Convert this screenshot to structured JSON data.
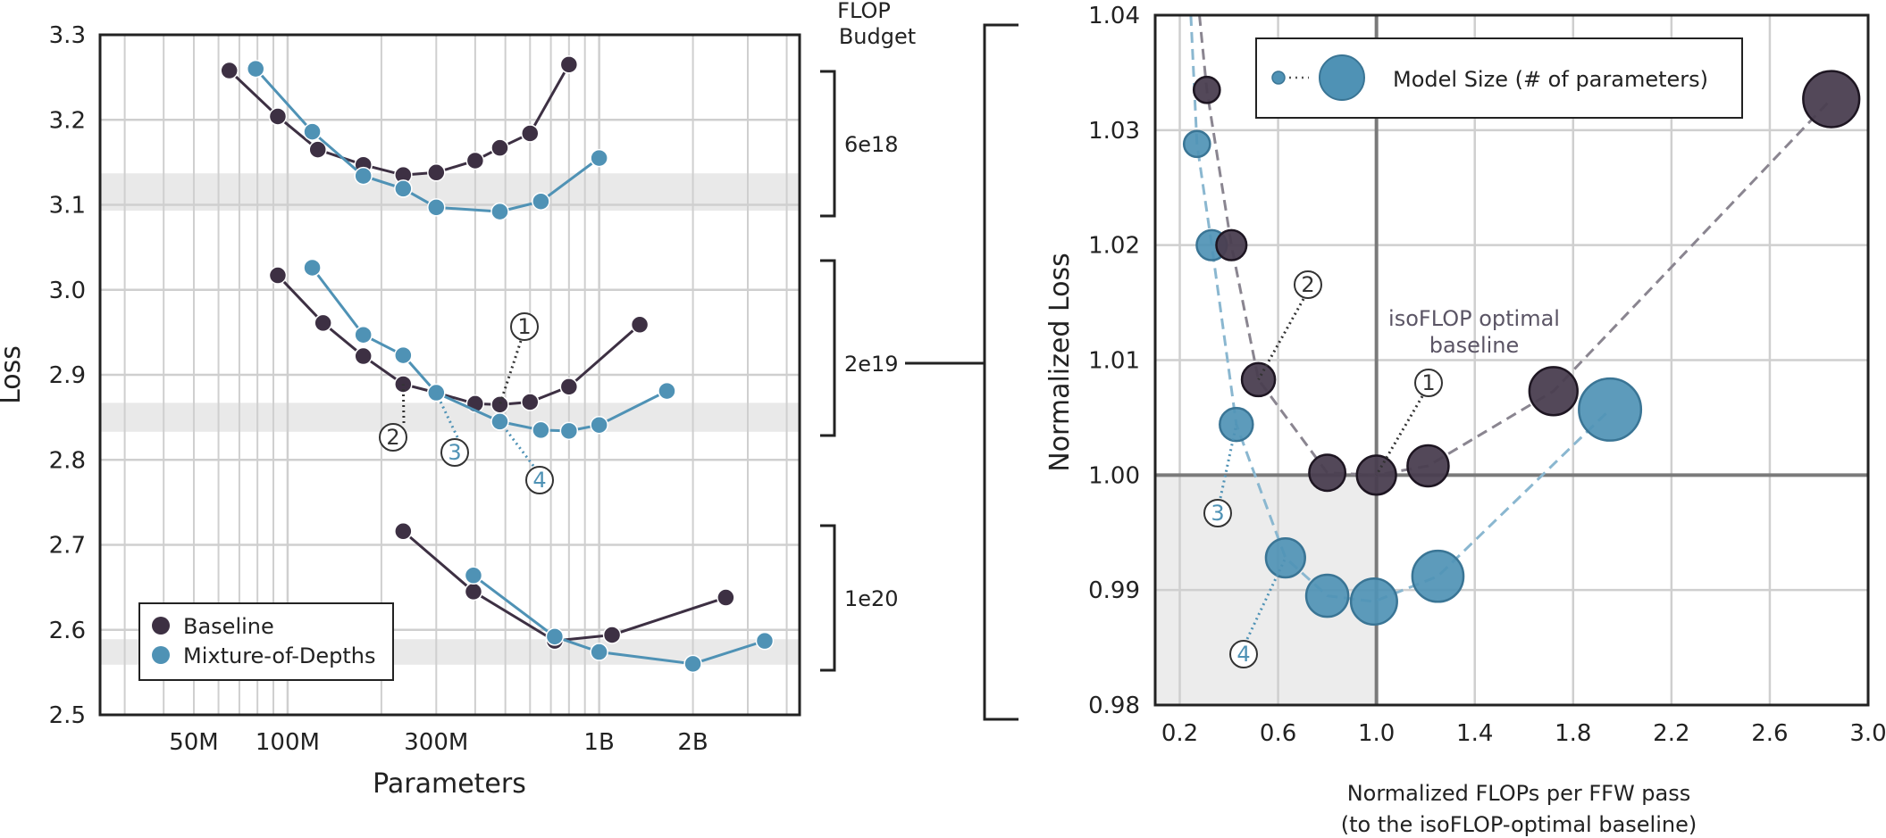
{
  "colors": {
    "baseline": "#3d3043",
    "mod": "#4f92b5",
    "mod_light": "#8ab7d0",
    "grid": "#cfcfcf",
    "band": "#e9e9e9"
  },
  "left": {
    "ylabel": "Loss",
    "xlabel": "Parameters",
    "flop_header": [
      "FLOP",
      "Budget"
    ],
    "budgets": [
      "6e18",
      "2e19",
      "1e20"
    ],
    "legend": [
      "Baseline",
      "Mixture-of-Depths"
    ],
    "yticks": [
      "2.5",
      "2.6",
      "2.7",
      "2.8",
      "2.9",
      "3.0",
      "3.1",
      "3.2",
      "3.3"
    ],
    "xticks": [
      "50M",
      "100M",
      "300M",
      "1B",
      "2B"
    ],
    "annotations": [
      "1",
      "2",
      "3",
      "4"
    ]
  },
  "right": {
    "ylabel": "Normalized Loss",
    "xlabel_line1": "Normalized FLOPs per FFW pass",
    "xlabel_line2": "(to the isoFLOP-optimal baseline)",
    "legend_label": "Model Size (# of parameters)",
    "iso_label_line1": "isoFLOP optimal",
    "iso_label_line2": "baseline",
    "yticks": [
      "0.98",
      "0.99",
      "1.00",
      "1.01",
      "1.02",
      "1.03",
      "1.04"
    ],
    "xticks": [
      "0.2",
      "0.6",
      "1.0",
      "1.4",
      "1.8",
      "2.2",
      "2.6",
      "3.0"
    ],
    "annotations": [
      "1",
      "2",
      "3",
      "4"
    ]
  },
  "chart_data": [
    {
      "type": "line",
      "xlabel": "Parameters",
      "ylabel": "Loss",
      "xscale": "log",
      "xlim": [
        25000000.0,
        4400000000.0
      ],
      "ylim": [
        2.5,
        3.3
      ],
      "legend": "lower-left",
      "grid": true,
      "series": [
        {
          "name": "Baseline",
          "budget": "6e18",
          "x": [
            65000000.0,
            93000000.0,
            125000000.0,
            175000000.0,
            235000000.0,
            300000000.0,
            400000000.0,
            480000000.0,
            600000000.0,
            800000000.0
          ],
          "y": [
            3.258,
            3.204,
            3.165,
            3.147,
            3.135,
            3.138,
            3.152,
            3.167,
            3.184,
            3.265
          ]
        },
        {
          "name": "Mixture-of-Depths",
          "budget": "6e18",
          "x": [
            79000000.0,
            120000000.0,
            175000000.0,
            235000000.0,
            300000000.0,
            480000000.0,
            650000000.0,
            1000000000.0
          ],
          "y": [
            3.26,
            3.186,
            3.134,
            3.119,
            3.097,
            3.092,
            3.104,
            3.155
          ]
        },
        {
          "name": "Baseline",
          "budget": "2e19",
          "x": [
            93000000.0,
            130000000.0,
            175000000.0,
            235000000.0,
            300000000.0,
            400000000.0,
            480000000.0,
            600000000.0,
            800000000.0,
            1350000000.0
          ],
          "y": [
            3.017,
            2.961,
            2.922,
            2.889,
            2.879,
            2.866,
            2.865,
            2.868,
            2.886,
            2.959
          ]
        },
        {
          "name": "Mixture-of-Depths",
          "budget": "2e19",
          "x": [
            120000000.0,
            175000000.0,
            235000000.0,
            300000000.0,
            480000000.0,
            650000000.0,
            800000000.0,
            1000000000.0,
            1650000000.0
          ],
          "y": [
            3.026,
            2.947,
            2.923,
            2.879,
            2.845,
            2.835,
            2.834,
            2.841,
            2.881
          ]
        },
        {
          "name": "Baseline",
          "budget": "1e20",
          "x": [
            235000000.0,
            395000000.0,
            720000000.0,
            1100000000.0,
            2550000000.0
          ],
          "y": [
            2.716,
            2.645,
            2.587,
            2.594,
            2.638
          ]
        },
        {
          "name": "Mixture-of-Depths",
          "budget": "1e20",
          "x": [
            395000000.0,
            720000000.0,
            1000000000.0,
            2000000000.0,
            3400000000.0
          ],
          "y": [
            2.664,
            2.592,
            2.574,
            2.56,
            2.587
          ]
        }
      ],
      "bands": [
        [
          3.093,
          3.137
        ],
        [
          2.833,
          2.867
        ],
        [
          2.559,
          2.589
        ]
      ]
    },
    {
      "type": "scatter",
      "xlabel": "Normalized FLOPs per FFW pass (to the isoFLOP-optimal baseline)",
      "ylabel": "Normalized Loss",
      "xlim": [
        0.1,
        3.0
      ],
      "ylim": [
        0.98,
        1.04
      ],
      "legend": "top",
      "grid": true,
      "reference_lines": {
        "x": 1.0,
        "y": 1.0
      },
      "series": [
        {
          "name": "Baseline",
          "x": [
            0.31,
            0.41,
            0.52,
            0.8,
            1.0,
            1.21,
            1.72,
            2.85
          ],
          "y": [
            1.0335,
            1.02,
            1.0083,
            1.0002,
            1.0,
            1.0008,
            1.0073,
            1.0327
          ],
          "size": [
            1,
            1.4,
            1.7,
            2.0,
            2.3,
            2.5,
            3.2,
            4.0
          ]
        },
        {
          "name": "Mixture-of-Depths",
          "x": [
            0.27,
            0.33,
            0.43,
            0.63,
            0.8,
            0.99,
            1.25,
            1.95
          ],
          "y": [
            1.0288,
            1.02,
            1.0044,
            0.9928,
            0.9895,
            0.989,
            0.9912,
            1.0057
          ],
          "size": [
            1,
            1.4,
            1.7,
            2.3,
            2.6,
            3.0,
            3.5,
            4.6
          ]
        }
      ]
    }
  ]
}
